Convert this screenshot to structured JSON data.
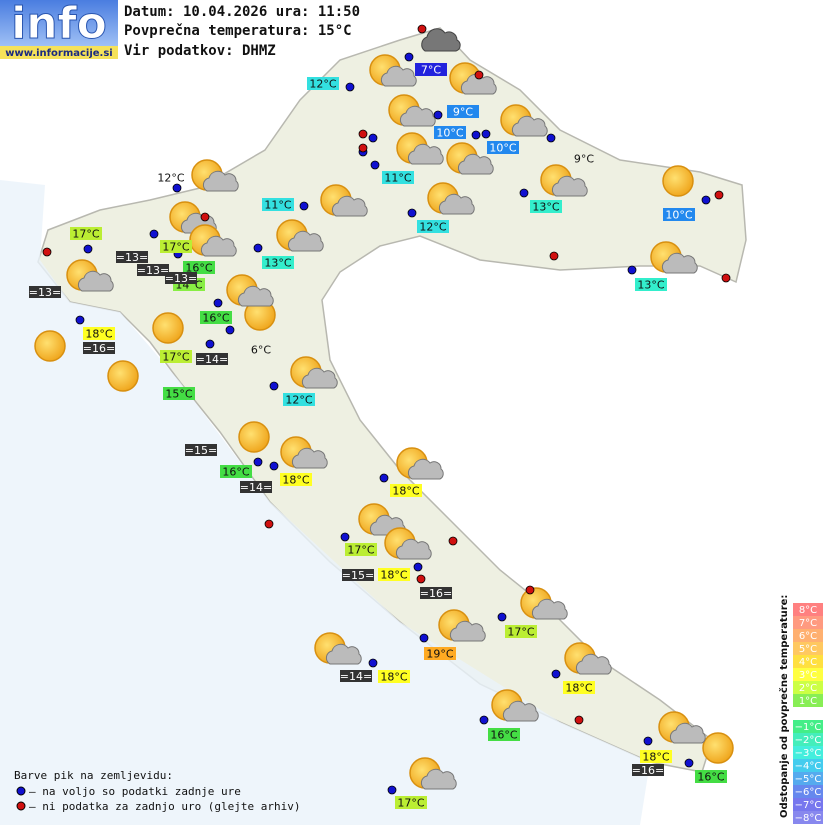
{
  "header": {
    "logo": "info",
    "site": "www.informacije.si",
    "lines": [
      "Datum: 10.04.2026 ura: 11:50",
      "Povprečna temperatura: 15°C",
      "Vir podatkov: DHMZ"
    ]
  },
  "stations": [
    "7°C",
    "12°C",
    "9°C",
    "10°C",
    "10°C",
    "9°C",
    "11°C",
    "12°C",
    "11°C",
    "13°C",
    "10°C",
    "12°C",
    "17°C",
    "17°C",
    "13°C",
    "16°C",
    "14°C",
    "13°C",
    "16°C",
    "18°C",
    "6°C",
    "17°C",
    "15°C",
    "12°C",
    "16°C",
    "18°C",
    "18°C",
    "17°C",
    "18°C",
    "17°C",
    "19°C",
    "18°C",
    "18°C",
    "16°C",
    "18°C",
    "16°C",
    "17°C"
  ],
  "sea_temperatures": [
    "=13=",
    "=13=",
    "=13=",
    "=13=",
    "=16=",
    "=14=",
    "=15=",
    "=14=",
    "=15=",
    "=16=",
    "=14=",
    "=16="
  ],
  "legend": {
    "title": "Barve pik na zemljevidu:",
    "items": [
      "– na voljo so podatki zadnje ure",
      "– ni podatka za zadnjo uro (glejte arhiv)"
    ]
  },
  "scale": {
    "title": "Odstopanje od povprečne temperature:",
    "labels": [
      "8°C",
      "7°C",
      "6°C",
      "5°C",
      "4°C",
      "3°C",
      "2°C",
      "1°C",
      "−1°C",
      "−2°C",
      "−3°C",
      "−4°C",
      "−5°C",
      "−6°C",
      "−7°C",
      "−8°C"
    ]
  }
}
